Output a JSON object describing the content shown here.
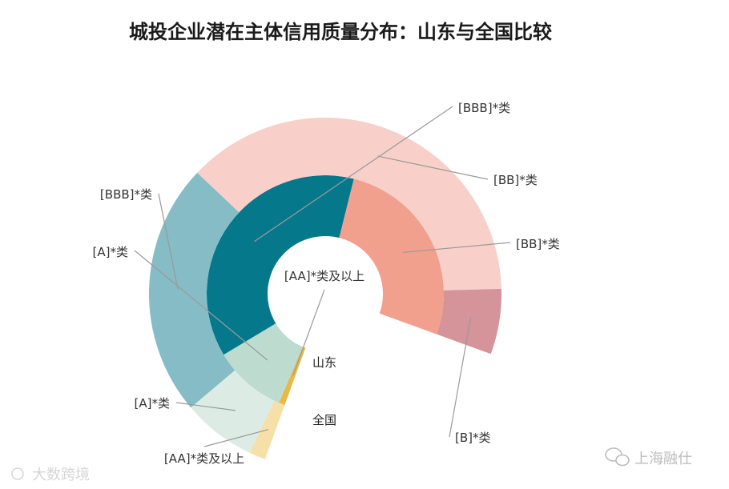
{
  "chart_data": {
    "type": "pie",
    "title": "城投企业潜在主体信用质量分布：山东与全国比较",
    "ring_labels": [
      "山东",
      "全国"
    ],
    "categories": [
      "[AA]*类及以上",
      "[A]*类",
      "[BBB]*类",
      "[BB]*类",
      "[B]*类"
    ],
    "colors": {
      "山东": [
        "#e8b84a",
        "#bddccf",
        "#06788c",
        "#f2a08e",
        "#d5939a"
      ],
      "全国": [
        "#f7dfa8",
        "#dcebe4",
        "#86bcc6",
        "#f8cfc9",
        "#d5939a"
      ]
    },
    "series": [
      {
        "name": "山东",
        "values": [
          1,
          12,
          45,
          32,
          0
        ]
      },
      {
        "name": "全国",
        "values": [
          2,
          9,
          31,
          50,
          8
        ]
      }
    ],
    "legend": "none"
  },
  "inner_labels": {
    "aa": "[AA]*类及以上",
    "bbb": "[BBB]*类",
    "bb": "[BB]*类",
    "a": "[A]*类"
  },
  "outer_labels": {
    "bbb": "[BBB]*类",
    "a": "[A]*类",
    "aa": "[AA]*类及以上",
    "bb": "[BB]*类",
    "b": "[B]*类"
  },
  "watermarks": {
    "left": "大数跨境",
    "right": "上海融仕"
  }
}
